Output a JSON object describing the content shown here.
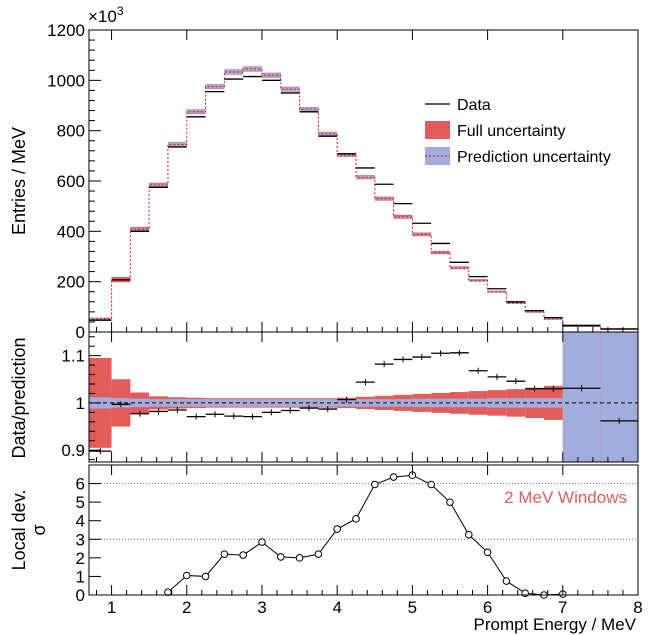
{
  "chart_data": {
    "type": "composite",
    "x_axis": {
      "label": "Prompt Energy / MeV",
      "range": [
        0.7,
        8.0
      ],
      "ticks": [
        "1",
        "2",
        "3",
        "4",
        "5",
        "6",
        "7",
        "8"
      ]
    },
    "panels": [
      {
        "id": "spectrum",
        "type": "step",
        "ylabel": "Entries / MeV",
        "ylim": [
          0,
          1200000
        ],
        "y_ticks": [
          0,
          200000,
          400000,
          600000,
          800000,
          1000000,
          1200000
        ],
        "y_tick_labels": [
          "0",
          "200",
          "400",
          "600",
          "800",
          "1000",
          "1200"
        ],
        "y_multiplier": "×10",
        "y_multiplier_exp": "3",
        "colors": {
          "data": "#000000",
          "full_uncertainty": "#e35c5c",
          "prediction_uncertainty": "#a3addb",
          "prediction_line": "#e0101a"
        },
        "legend": {
          "position": "top-right",
          "entries": [
            "Data",
            "Full uncertainty",
            "Prediction uncertainty"
          ]
        },
        "bin_edges": [
          0.7,
          1.0,
          1.25,
          1.5,
          1.75,
          2.0,
          2.25,
          2.5,
          2.75,
          3.0,
          3.25,
          3.5,
          3.75,
          4.0,
          4.25,
          4.5,
          4.75,
          5.0,
          5.25,
          5.5,
          5.75,
          6.0,
          6.25,
          6.5,
          6.75,
          7.0,
          7.5,
          8.0
        ],
        "data": [
          47000,
          207000,
          400000,
          575000,
          735000,
          855000,
          955000,
          1005000,
          1015000,
          1000000,
          950000,
          875000,
          778000,
          708000,
          652000,
          587000,
          510000,
          432000,
          352000,
          277000,
          220000,
          172000,
          120000,
          85000,
          57000,
          25000,
          12000
        ],
        "prediction": [
          52000,
          208000,
          408000,
          585000,
          745000,
          875000,
          975000,
          1033000,
          1045000,
          1020000,
          965000,
          885000,
          788000,
          703000,
          615000,
          530000,
          458000,
          388000,
          316000,
          255000,
          205000,
          160000,
          115000,
          80000,
          52000,
          26000,
          12000
        ]
      },
      {
        "id": "ratio",
        "type": "ratio",
        "ylabel": "Data/prediction",
        "ylim": [
          0.875,
          1.15
        ],
        "y_ticks": [
          0.9,
          1.0,
          1.1
        ],
        "y_tick_labels": [
          "0.9",
          "1",
          "1.1"
        ],
        "reference_line": 1.0,
        "ratio": [
          0.898,
          0.997,
          0.977,
          0.982,
          0.985,
          0.971,
          0.976,
          0.972,
          0.971,
          0.98,
          0.984,
          0.989,
          0.987,
          1.007,
          1.044,
          1.082,
          1.092,
          1.097,
          1.105,
          1.106,
          1.068,
          1.055,
          1.046,
          1.03,
          1.03,
          1.031,
          0.962
        ],
        "full_uncertainty_half_width": [
          0.095,
          0.05,
          0.022,
          0.014,
          0.012,
          0.011,
          0.01,
          0.01,
          0.01,
          0.01,
          0.01,
          0.01,
          0.01,
          0.011,
          0.013,
          0.015,
          0.017,
          0.019,
          0.021,
          0.023,
          0.025,
          0.027,
          0.029,
          0.032,
          0.036,
          0.22,
          0.22
        ],
        "prediction_uncertainty_half_width": [
          0.012,
          0.01,
          0.009,
          0.008,
          0.008,
          0.008,
          0.008,
          0.008,
          0.008,
          0.008,
          0.008,
          0.008,
          0.008,
          0.008,
          0.008,
          0.008,
          0.008,
          0.009,
          0.009,
          0.009,
          0.009,
          0.01,
          0.01,
          0.01,
          0.01,
          0.22,
          0.22
        ]
      },
      {
        "id": "local_deviation",
        "type": "line",
        "ylabel_line1": "Local dev.",
        "ylabel_line2": "σ",
        "ylim": [
          0,
          7
        ],
        "y_ticks": [
          0,
          1,
          2,
          3,
          4,
          5,
          6
        ],
        "y_tick_labels": [
          "0",
          "1",
          "2",
          "3",
          "4",
          "5",
          "6"
        ],
        "reference_lines": [
          3,
          6
        ],
        "annotation": "2 MeV Windows",
        "annotation_color": "#e35c5c",
        "x": [
          1.75,
          2.0,
          2.25,
          2.5,
          2.75,
          3.0,
          3.25,
          3.5,
          3.75,
          4.0,
          4.25,
          4.5,
          4.75,
          5.0,
          5.25,
          5.5,
          5.75,
          6.0,
          6.25,
          6.5,
          6.75,
          7.0
        ],
        "values": [
          0.15,
          1.05,
          1.0,
          2.2,
          2.15,
          2.85,
          2.05,
          2.0,
          2.2,
          3.55,
          4.1,
          5.95,
          6.35,
          6.45,
          5.95,
          5.0,
          3.25,
          2.3,
          0.75,
          0.1,
          0.0,
          0.05
        ]
      }
    ]
  }
}
